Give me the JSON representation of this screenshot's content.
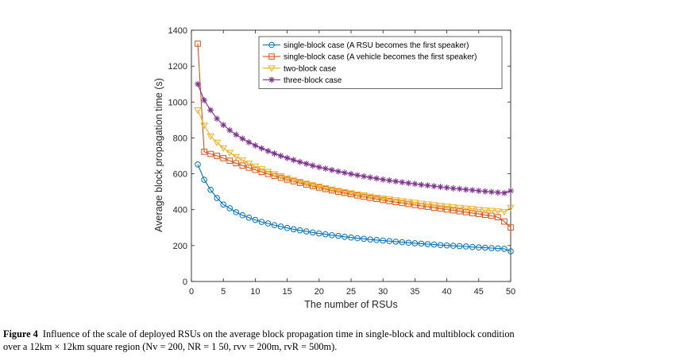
{
  "chart_data": {
    "type": "line",
    "xlabel": "The number of RSUs",
    "ylabel": "Average block propagation time (s)",
    "xlim": [
      0,
      50
    ],
    "ylim": [
      0,
      1400
    ],
    "xticks": [
      0,
      5,
      10,
      15,
      20,
      25,
      30,
      35,
      40,
      45,
      50
    ],
    "yticks": [
      0,
      200,
      400,
      600,
      800,
      1000,
      1200,
      1400
    ],
    "grid": false,
    "legend_position": "top-right",
    "series": [
      {
        "name": "single-block case  (A RSU becomes the first speaker)",
        "color": "#0072bd",
        "marker": "circle",
        "x": [
          1,
          2,
          3,
          4,
          5,
          6,
          7,
          8,
          9,
          10,
          11,
          12,
          13,
          14,
          15,
          16,
          17,
          18,
          19,
          20,
          21,
          22,
          23,
          24,
          25,
          26,
          27,
          28,
          29,
          30,
          31,
          32,
          33,
          34,
          35,
          36,
          37,
          38,
          39,
          40,
          41,
          42,
          43,
          44,
          45,
          46,
          47,
          48,
          49,
          50
        ],
        "y": [
          652,
          567,
          511,
          465,
          429,
          408,
          386,
          369,
          356,
          343,
          332,
          323,
          314,
          306,
          298,
          291,
          285,
          279,
          273,
          268,
          263,
          258,
          254,
          249,
          245,
          241,
          238,
          234,
          231,
          228,
          225,
          222,
          219,
          216,
          213,
          211,
          208,
          206,
          203,
          201,
          199,
          197,
          195,
          192,
          190,
          188,
          186,
          184,
          182,
          168
        ]
      },
      {
        "name": "single-block case  (A vehicle becomes the first speaker)",
        "color": "#d95319",
        "marker": "square",
        "x": [
          1,
          2,
          3,
          4,
          5,
          6,
          7,
          8,
          9,
          10,
          11,
          12,
          13,
          14,
          15,
          16,
          17,
          18,
          19,
          20,
          21,
          22,
          23,
          24,
          25,
          26,
          27,
          28,
          29,
          30,
          31,
          32,
          33,
          34,
          35,
          36,
          37,
          38,
          39,
          40,
          41,
          42,
          43,
          44,
          45,
          46,
          47,
          48,
          49,
          50
        ],
        "y": [
          1325,
          723,
          711,
          700,
          687,
          673,
          659,
          646,
          634,
          622,
          610,
          599,
          588,
          578,
          568,
          558,
          549,
          540,
          531,
          523,
          515,
          507,
          500,
          493,
          486,
          479,
          472,
          466,
          460,
          454,
          448,
          442,
          437,
          432,
          426,
          421,
          416,
          411,
          406,
          401,
          396,
          391,
          386,
          381,
          376,
          371,
          366,
          358,
          334,
          301
        ]
      },
      {
        "name": "two-block case",
        "color": "#edb120",
        "marker": "triangle-down",
        "x": [
          1,
          2,
          3,
          4,
          5,
          6,
          7,
          8,
          9,
          10,
          11,
          12,
          13,
          14,
          15,
          16,
          17,
          18,
          19,
          20,
          21,
          22,
          23,
          24,
          25,
          26,
          27,
          28,
          29,
          30,
          31,
          32,
          33,
          34,
          35,
          36,
          37,
          38,
          39,
          40,
          41,
          42,
          43,
          44,
          45,
          46,
          47,
          48,
          49,
          50
        ],
        "y": [
          955,
          870,
          810,
          775,
          744,
          718,
          695,
          676,
          658,
          642,
          627,
          613,
          600,
          588,
          577,
          567,
          557,
          547,
          538,
          530,
          522,
          514,
          507,
          500,
          493,
          487,
          481,
          475,
          469,
          464,
          459,
          454,
          449,
          444,
          440,
          435,
          431,
          427,
          423,
          419,
          415,
          412,
          408,
          405,
          401,
          398,
          395,
          392,
          389,
          412
        ]
      },
      {
        "name": "three-block case",
        "color": "#7e2f8e",
        "marker": "asterisk",
        "x": [
          1,
          2,
          3,
          4,
          5,
          6,
          7,
          8,
          9,
          10,
          11,
          12,
          13,
          14,
          15,
          16,
          17,
          18,
          19,
          20,
          21,
          22,
          23,
          24,
          25,
          26,
          27,
          28,
          29,
          30,
          31,
          32,
          33,
          34,
          35,
          36,
          37,
          38,
          39,
          40,
          41,
          42,
          43,
          44,
          45,
          46,
          47,
          48,
          49,
          50
        ],
        "y": [
          1100,
          1010,
          955,
          907,
          872,
          843,
          818,
          796,
          776,
          758,
          742,
          727,
          713,
          700,
          688,
          677,
          666,
          656,
          646,
          637,
          629,
          621,
          613,
          606,
          599,
          592,
          586,
          580,
          574,
          568,
          563,
          558,
          553,
          548,
          544,
          539,
          535,
          531,
          527,
          523,
          519,
          516,
          512,
          509,
          505,
          502,
          499,
          496,
          493,
          505
        ]
      }
    ]
  },
  "caption": {
    "label": "Figure 4",
    "line1": "Influence of the scale of deployed RSUs on the average block propagation time in single-block and multiblock condition",
    "line2": "over a 12km × 12km square region (Nv = 200, NR = 1 50, rvv = 200m, rvR = 500m)."
  }
}
